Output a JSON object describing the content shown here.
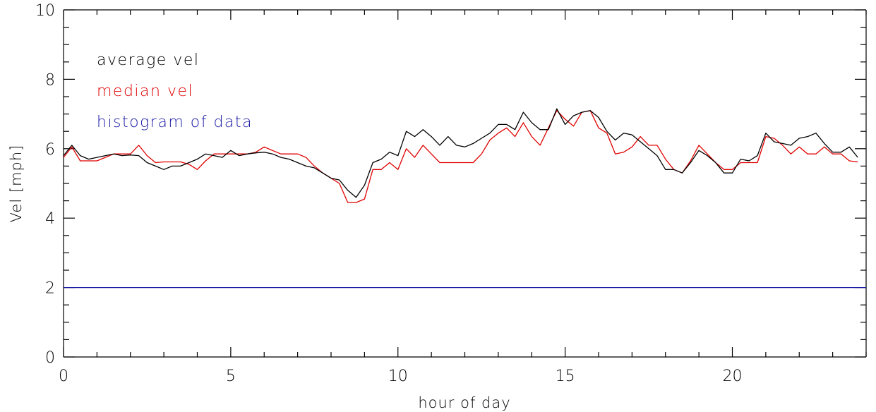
{
  "chart_data": {
    "type": "line",
    "xlabel": "hour of day",
    "ylabel": "Vel [mph]",
    "xlim": [
      0,
      24
    ],
    "ylim": [
      0,
      10
    ],
    "x_ticks": [
      0,
      5,
      10,
      15,
      20
    ],
    "y_ticks": [
      0,
      2,
      4,
      6,
      8,
      10
    ],
    "x_tick_labels": [
      "0",
      "5",
      "10",
      "15",
      "20"
    ],
    "y_tick_labels": [
      "0",
      "2",
      "4",
      "6",
      "8",
      "10"
    ],
    "grid": false,
    "legend_placement": "top-left",
    "legend": [
      {
        "label": "average vel",
        "color": "#000000"
      },
      {
        "label": "median vel",
        "color": "#e00000"
      },
      {
        "label": "histogram of data",
        "color": "#1a1aa6"
      }
    ],
    "series": [
      {
        "name": "average vel",
        "color": "#000000",
        "x": [
          0,
          0.25,
          0.5,
          0.75,
          1,
          1.25,
          1.5,
          1.75,
          2,
          2.25,
          2.5,
          2.75,
          3,
          3.25,
          3.5,
          3.75,
          4,
          4.25,
          4.5,
          4.75,
          5,
          5.25,
          5.5,
          5.75,
          6,
          6.25,
          6.5,
          6.75,
          7,
          7.25,
          7.5,
          7.75,
          8,
          8.25,
          8.5,
          8.75,
          9,
          9.25,
          9.5,
          9.75,
          10,
          10.25,
          10.5,
          10.75,
          11,
          11.25,
          11.5,
          11.75,
          12,
          12.25,
          12.5,
          12.75,
          13,
          13.25,
          13.5,
          13.75,
          14,
          14.25,
          14.5,
          14.75,
          15,
          15.25,
          15.5,
          15.75,
          16,
          16.25,
          16.5,
          16.75,
          17,
          17.25,
          17.5,
          17.75,
          18,
          18.25,
          18.5,
          18.75,
          19,
          19.25,
          19.5,
          19.75,
          20,
          20.25,
          20.5,
          20.75,
          21,
          21.25,
          21.5,
          21.75,
          22,
          22.25,
          22.5,
          22.75,
          23,
          23.25,
          23.5,
          23.75
        ],
        "y": [
          5.8,
          6.1,
          5.8,
          5.7,
          5.75,
          5.8,
          5.85,
          5.8,
          5.82,
          5.8,
          5.6,
          5.5,
          5.4,
          5.5,
          5.5,
          5.6,
          5.7,
          5.85,
          5.8,
          5.75,
          5.95,
          5.8,
          5.85,
          5.88,
          5.9,
          5.85,
          5.75,
          5.7,
          5.6,
          5.5,
          5.45,
          5.3,
          5.15,
          5.1,
          4.8,
          4.6,
          4.95,
          5.6,
          5.7,
          5.9,
          5.8,
          6.5,
          6.35,
          6.55,
          6.35,
          6.1,
          6.35,
          6.1,
          6.05,
          6.15,
          6.3,
          6.45,
          6.7,
          6.7,
          6.55,
          7.05,
          6.75,
          6.55,
          6.55,
          7.15,
          6.7,
          6.95,
          7.05,
          7.1,
          6.9,
          6.5,
          6.25,
          6.45,
          6.4,
          6.2,
          6.0,
          5.8,
          5.4,
          5.4,
          5.3,
          5.6,
          5.95,
          5.8,
          5.6,
          5.3,
          5.3,
          5.7,
          5.65,
          5.8,
          6.45,
          6.2,
          6.15,
          6.1,
          6.3,
          6.35,
          6.45,
          6.15,
          5.9,
          5.9,
          6.05,
          5.75
        ]
      },
      {
        "name": "median vel",
        "color": "#e00000",
        "x": [
          0,
          0.25,
          0.5,
          0.75,
          1,
          1.25,
          1.5,
          1.75,
          2,
          2.25,
          2.5,
          2.75,
          3,
          3.25,
          3.5,
          3.75,
          4,
          4.25,
          4.5,
          4.75,
          5,
          5.25,
          5.5,
          5.75,
          6,
          6.25,
          6.5,
          6.75,
          7,
          7.25,
          7.5,
          7.75,
          8,
          8.25,
          8.5,
          8.75,
          9,
          9.25,
          9.5,
          9.75,
          10,
          10.25,
          10.5,
          10.75,
          11,
          11.25,
          11.5,
          11.75,
          12,
          12.25,
          12.5,
          12.75,
          13,
          13.25,
          13.5,
          13.75,
          14,
          14.25,
          14.5,
          14.75,
          15,
          15.25,
          15.5,
          15.75,
          16,
          16.25,
          16.5,
          16.75,
          17,
          17.25,
          17.5,
          17.75,
          18,
          18.25,
          18.5,
          18.75,
          19,
          19.25,
          19.5,
          19.75,
          20,
          20.25,
          20.5,
          20.75,
          21,
          21.25,
          21.5,
          21.75,
          22,
          22.25,
          22.5,
          22.75,
          23,
          23.25,
          23.5,
          23.75
        ],
        "y": [
          5.75,
          6.05,
          5.65,
          5.65,
          5.65,
          5.75,
          5.85,
          5.85,
          5.85,
          6.1,
          5.8,
          5.6,
          5.62,
          5.62,
          5.62,
          5.55,
          5.4,
          5.65,
          5.85,
          5.85,
          5.85,
          5.85,
          5.85,
          5.9,
          6.05,
          5.95,
          5.85,
          5.85,
          5.85,
          5.75,
          5.5,
          5.3,
          5.15,
          5.0,
          4.45,
          4.45,
          4.55,
          5.4,
          5.4,
          5.6,
          5.4,
          6.0,
          5.75,
          6.1,
          5.85,
          5.6,
          5.6,
          5.6,
          5.6,
          5.6,
          5.85,
          6.25,
          6.45,
          6.6,
          6.35,
          6.75,
          6.35,
          6.1,
          6.6,
          7.1,
          6.85,
          6.65,
          7.05,
          7.1,
          6.6,
          6.45,
          5.85,
          5.9,
          6.05,
          6.35,
          6.1,
          6.1,
          5.7,
          5.4,
          5.3,
          5.65,
          6.1,
          5.85,
          5.6,
          5.4,
          5.4,
          5.6,
          5.6,
          5.6,
          6.35,
          6.3,
          6.1,
          5.85,
          6.05,
          5.85,
          5.85,
          6.05,
          5.85,
          5.85,
          5.65,
          5.62
        ]
      },
      {
        "name": "histogram of data",
        "color": "#1a1aa6",
        "x": [
          0,
          24
        ],
        "y": [
          2.0,
          2.0
        ]
      }
    ]
  }
}
